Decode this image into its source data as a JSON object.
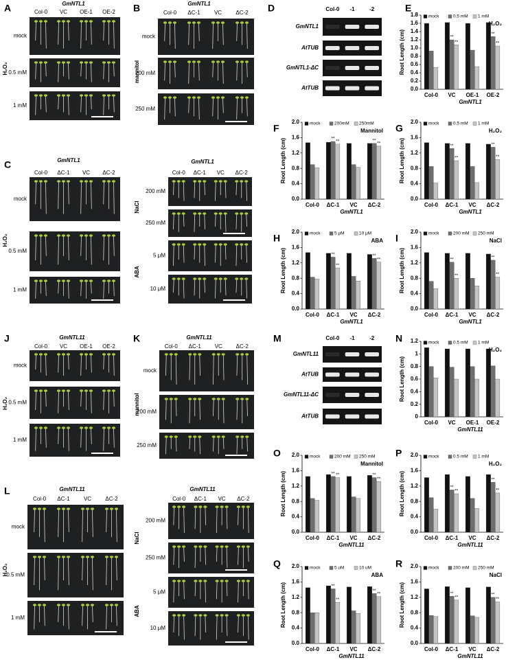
{
  "photo_panels": [
    {
      "letter": "A",
      "title": "GmNTL1",
      "columns": [
        "Col-0",
        "VC",
        "OE-1",
        "OE-2"
      ],
      "rows": [
        "mock",
        "0.5 mM",
        "1 mM"
      ],
      "side_labels": [
        "H₂O₂"
      ]
    },
    {
      "letter": "B",
      "title": "GmNTL1",
      "columns": [
        "Col-0",
        "ΔC-1",
        "VC",
        "ΔC-2"
      ],
      "rows": [
        "mock",
        "200 mM",
        "250 mM"
      ],
      "side_labels": [
        "mannitol"
      ]
    },
    {
      "letter": "C",
      "title": "GmNTL1",
      "columns": [
        "Col-0",
        "ΔC-1",
        "VC",
        "ΔC-2"
      ],
      "rows": [
        "mock",
        "0.5 mM",
        "1 mM"
      ],
      "side_labels": [
        "H₂O₂"
      ]
    },
    {
      "title": "GmNTL1",
      "columns": [
        "Col-0",
        "ΔC-1",
        "VC",
        "ΔC-2"
      ],
      "rows": [
        "200 mM",
        "250 mM",
        "5 μM",
        "10 μM"
      ],
      "side_labels": [
        "NaCl",
        "ABA"
      ]
    },
    {
      "letter": "J",
      "title": "GmNTL11",
      "columns": [
        "Col-0",
        "VC",
        "OE-1",
        "OE-2"
      ],
      "rows": [
        "mock",
        "0.5 mM",
        "1 mM"
      ],
      "side_labels": [
        "H₂O₂"
      ]
    },
    {
      "letter": "K",
      "title": "GmNTL11",
      "columns": [
        "Col-0",
        "ΔC-1",
        "VC",
        "ΔC-2"
      ],
      "rows": [
        "mock",
        "200 mM",
        "250 mM"
      ],
      "side_labels": [
        "mannitol"
      ]
    },
    {
      "letter": "L",
      "title": "GmNTL11",
      "columns": [
        "Col-0",
        "ΔC-1",
        "VC",
        "ΔC-2"
      ],
      "rows": [
        "mock",
        "0.5 mM",
        "1 mM"
      ],
      "side_labels": [
        "H₂O₂"
      ]
    },
    {
      "title": "GmNTL11",
      "columns": [
        "Col-0",
        "ΔC-1",
        "VC",
        "ΔC-2"
      ],
      "rows": [
        "200 mM",
        "250 mM",
        "5 μM",
        "10 μM"
      ],
      "side_labels": [
        "NaCl",
        "ABA"
      ]
    }
  ],
  "gel_panels": [
    {
      "letter": "D",
      "columns": [
        "Col-0",
        "-1",
        "-2"
      ],
      "rows": [
        "GmNTL1",
        "AtTUB",
        "GmNTL1-ΔC",
        "AtTUB"
      ]
    },
    {
      "letter": "M",
      "columns": [
        "Col-0",
        "-1",
        "-2"
      ],
      "rows": [
        "GmNTL11",
        "AtTUB",
        "GmNTL11-ΔC",
        "AtTUB"
      ]
    }
  ],
  "chart_data": [
    {
      "type": "bar",
      "letter": "E",
      "title": "H₂O₂",
      "ylabel": "Root Length (cm)",
      "group_label": "GmNTL1",
      "categories": [
        "Col-0",
        "VC",
        "OE-1",
        "OE-2"
      ],
      "ylim": [
        0,
        1.8
      ],
      "yticks": [
        {
          "value": 0,
          "label": "0.0"
        },
        0.2,
        0.4,
        0.6,
        0.8,
        {
          "value": 1,
          "label": "1.0"
        },
        1.2,
        1.4,
        1.6,
        1.8
      ],
      "series": [
        {
          "name": "mock",
          "color": "#111111",
          "values": [
            1.6,
            1.62,
            1.6,
            1.62
          ]
        },
        {
          "name": "0.5 mM",
          "color": "#6e6e6e",
          "values": [
            0.93,
            1.2,
            0.95,
            1.28
          ],
          "annotations": [
            null,
            "**",
            null,
            "**"
          ]
        },
        {
          "name": "1 mM",
          "color": "#c4c4c4",
          "values": [
            0.53,
            1.08,
            0.55,
            1.05
          ],
          "annotations": [
            null,
            "**",
            null,
            "**"
          ]
        }
      ]
    },
    {
      "type": "bar",
      "letter": "F",
      "title": "Mannitol",
      "ylabel": "Root Length (cm)",
      "group_label": "GmNTL1",
      "categories": [
        "Col-0",
        "ΔC-1",
        "VC",
        "ΔC-2"
      ],
      "ylim": [
        0,
        2
      ],
      "yticks": [
        {
          "value": 0,
          "label": "0.0"
        },
        0.4,
        0.8,
        1.2,
        1.6,
        {
          "value": 2,
          "label": "2.0"
        }
      ],
      "series": [
        {
          "name": "mock",
          "color": "#111111",
          "values": [
            1.47,
            1.48,
            1.45,
            1.45
          ]
        },
        {
          "name": "200mM",
          "color": "#6e6e6e",
          "values": [
            0.9,
            1.5,
            0.9,
            1.45
          ],
          "annotations": [
            null,
            "**",
            null,
            "**"
          ]
        },
        {
          "name": "250mM",
          "color": "#c4c4c4",
          "values": [
            0.82,
            1.43,
            0.83,
            1.38
          ],
          "annotations": [
            null,
            "**",
            null,
            "**"
          ]
        }
      ]
    },
    {
      "type": "bar",
      "letter": "G",
      "title": "H₂O₂",
      "ylabel": "Root Length (cm)",
      "group_label": "GmNTL1",
      "categories": [
        "Col-0",
        "ΔC-1",
        "VC",
        "ΔC-2"
      ],
      "ylim": [
        0,
        2
      ],
      "yticks": [
        {
          "value": 0,
          "label": "0.0"
        },
        0.4,
        0.8,
        1.2,
        1.6,
        {
          "value": 2,
          "label": "2.0"
        }
      ],
      "series": [
        {
          "name": "mock",
          "color": "#111111",
          "values": [
            1.47,
            1.45,
            1.45,
            1.43
          ]
        },
        {
          "name": "0.5 mM",
          "color": "#6e6e6e",
          "values": [
            0.85,
            1.32,
            0.85,
            1.35
          ],
          "annotations": [
            null,
            "**",
            null,
            "**"
          ]
        },
        {
          "name": "1 mM",
          "color": "#c4c4c4",
          "values": [
            0.42,
            1.0,
            0.43,
            1.03
          ],
          "annotations": [
            null,
            "**",
            null,
            "**"
          ]
        }
      ]
    },
    {
      "type": "bar",
      "letter": "H",
      "title": "ABA",
      "ylabel": "Root Length (cm)",
      "group_label": "GmNTL1",
      "categories": [
        "Col-0",
        "ΔC-1",
        "VC",
        "ΔC-2"
      ],
      "ylim": [
        0,
        2
      ],
      "yticks": [
        {
          "value": 0,
          "label": "0.0"
        },
        0.4,
        0.8,
        1.2,
        1.6,
        {
          "value": 2,
          "label": "2.0"
        }
      ],
      "series": [
        {
          "name": "mock",
          "color": "#111111",
          "values": [
            1.47,
            1.45,
            1.45,
            1.42
          ]
        },
        {
          "name": "5 μM",
          "color": "#6e6e6e",
          "values": [
            0.83,
            1.35,
            0.85,
            1.32
          ],
          "annotations": [
            null,
            "**",
            null,
            "**"
          ]
        },
        {
          "name": "10 μM",
          "color": "#c4c4c4",
          "values": [
            0.78,
            1.07,
            0.73,
            1.22
          ],
          "annotations": [
            null,
            "**",
            null,
            "**"
          ]
        }
      ]
    },
    {
      "type": "bar",
      "letter": "I",
      "title": "NaCl",
      "ylabel": "Root Length (cm)",
      "group_label": "GmNTL1",
      "categories": [
        "Col-0",
        "ΔC-1",
        "VC",
        "ΔC-2"
      ],
      "ylim": [
        0,
        2
      ],
      "yticks": [
        {
          "value": 0,
          "label": "0.0"
        },
        0.4,
        0.8,
        1.2,
        1.6,
        {
          "value": 2,
          "label": "2.0"
        }
      ],
      "series": [
        {
          "name": "mock",
          "color": "#111111",
          "values": [
            1.47,
            1.45,
            1.45,
            1.43
          ]
        },
        {
          "name": "200 mM",
          "color": "#6e6e6e",
          "values": [
            0.72,
            1.22,
            0.8,
            1.27
          ],
          "annotations": [
            null,
            "**",
            null,
            "**"
          ]
        },
        {
          "name": "250 mM",
          "color": "#c4c4c4",
          "values": [
            0.53,
            0.8,
            0.6,
            0.83
          ],
          "annotations": [
            null,
            "**",
            null,
            "**"
          ]
        }
      ]
    },
    {
      "type": "bar",
      "letter": "N",
      "title": "H₂O₂",
      "ylabel": "Root Length (cm)",
      "group_label": "GmNTL11",
      "categories": [
        "Col-0",
        "VC",
        "OE-1",
        "OE-2"
      ],
      "ylim": [
        0,
        1.2
      ],
      "yticks": [
        0,
        0.2,
        0.4,
        0.6,
        0.8,
        1,
        1.2
      ],
      "series": [
        {
          "name": "mock",
          "color": "#111111",
          "values": [
            1.1,
            1.08,
            1.08,
            1.08
          ]
        },
        {
          "name": "0.5 mM",
          "color": "#6e6e6e",
          "values": [
            0.8,
            0.79,
            0.8,
            0.81
          ]
        },
        {
          "name": "1 mM",
          "color": "#c4c4c4",
          "values": [
            0.62,
            0.6,
            0.6,
            0.6
          ]
        }
      ]
    },
    {
      "type": "bar",
      "letter": "O",
      "title": "Mannitol",
      "ylabel": "Root Length (cm)",
      "group_label": "GmNTL11",
      "categories": [
        "Col-0",
        "ΔC-1",
        "VC",
        "ΔC-2"
      ],
      "ylim": [
        0,
        2
      ],
      "yticks": [
        {
          "value": 0,
          "label": "0.0"
        },
        0.4,
        0.8,
        1.2,
        1.6,
        {
          "value": 2,
          "label": "2.0"
        }
      ],
      "series": [
        {
          "name": "mock",
          "color": "#111111",
          "values": [
            1.45,
            1.5,
            1.45,
            1.48
          ]
        },
        {
          "name": "200 mM",
          "color": "#6e6e6e",
          "values": [
            0.88,
            1.45,
            0.92,
            1.42
          ],
          "annotations": [
            null,
            "**",
            null,
            "**"
          ]
        },
        {
          "name": "250 mM",
          "color": "#c4c4c4",
          "values": [
            0.83,
            1.42,
            0.88,
            1.32
          ],
          "annotations": [
            null,
            "**",
            null,
            "**"
          ]
        }
      ]
    },
    {
      "type": "bar",
      "letter": "P",
      "title": "H₂O₂",
      "ylabel": "Root Length (cm)",
      "group_label": "GmNTL11",
      "categories": [
        "Col-0",
        "ΔC-1",
        "VC",
        "ΔC-2"
      ],
      "ylim": [
        0,
        2
      ],
      "yticks": [
        {
          "value": 0,
          "label": "0.0"
        },
        0.4,
        0.8,
        1.2,
        1.6,
        {
          "value": 2,
          "label": "2.0"
        }
      ],
      "series": [
        {
          "name": "mock",
          "color": "#111111",
          "values": [
            1.42,
            1.5,
            1.45,
            1.5
          ]
        },
        {
          "name": "0.5 mM",
          "color": "#6e6e6e",
          "values": [
            0.9,
            1.1,
            0.88,
            1.3
          ],
          "annotations": [
            null,
            "**",
            null,
            "**"
          ]
        },
        {
          "name": "1 mM",
          "color": "#c4c4c4",
          "values": [
            0.6,
            1.0,
            0.62,
            1.02
          ],
          "annotations": [
            null,
            "**",
            null,
            "**"
          ]
        }
      ]
    },
    {
      "type": "bar",
      "letter": "Q",
      "title": "ABA",
      "ylabel": "Root Length (cm)",
      "group_label": "GmNTL11",
      "categories": [
        "Col-0",
        "ΔC-1",
        "VC",
        "ΔC-2"
      ],
      "ylim": [
        0,
        2
      ],
      "yticks": [
        {
          "value": 0,
          "label": "0.0"
        },
        0.4,
        0.8,
        1.2,
        1.6,
        {
          "value": 2,
          "label": "2.0"
        }
      ],
      "series": [
        {
          "name": "mock",
          "color": "#111111",
          "values": [
            1.45,
            1.5,
            1.47,
            1.48
          ]
        },
        {
          "name": "5 uM",
          "color": "#6e6e6e",
          "values": [
            0.8,
            1.42,
            0.85,
            1.3
          ],
          "annotations": [
            null,
            "**",
            null,
            "**"
          ]
        },
        {
          "name": "10 uM",
          "color": "#c4c4c4",
          "values": [
            0.8,
            1.07,
            0.78,
            1.22
          ],
          "annotations": [
            null,
            "**",
            null,
            "**"
          ]
        }
      ]
    },
    {
      "type": "bar",
      "letter": "R",
      "title": "NaCl",
      "ylabel": "Root Length (cm)",
      "group_label": "GmNTL11",
      "categories": [
        "Col-0",
        "ΔC-1",
        "VC",
        "ΔC-2"
      ],
      "ylim": [
        0,
        2
      ],
      "yticks": [
        {
          "value": 0,
          "label": "0.0"
        },
        0.4,
        0.8,
        1.2,
        1.6,
        {
          "value": 2,
          "label": "2.0"
        }
      ],
      "series": [
        {
          "name": "mock",
          "color": "#111111",
          "values": [
            1.42,
            1.48,
            1.45,
            1.47
          ]
        },
        {
          "name": "200 mM",
          "color": "#6e6e6e",
          "values": [
            0.73,
            1.23,
            0.72,
            1.2
          ],
          "annotations": [
            null,
            "**",
            null,
            "**"
          ]
        },
        {
          "name": "250 mM",
          "color": "#c4c4c4",
          "values": [
            0.7,
            1.13,
            0.68,
            1.08
          ],
          "annotations": [
            null,
            "**",
            null,
            "**"
          ]
        }
      ]
    }
  ]
}
